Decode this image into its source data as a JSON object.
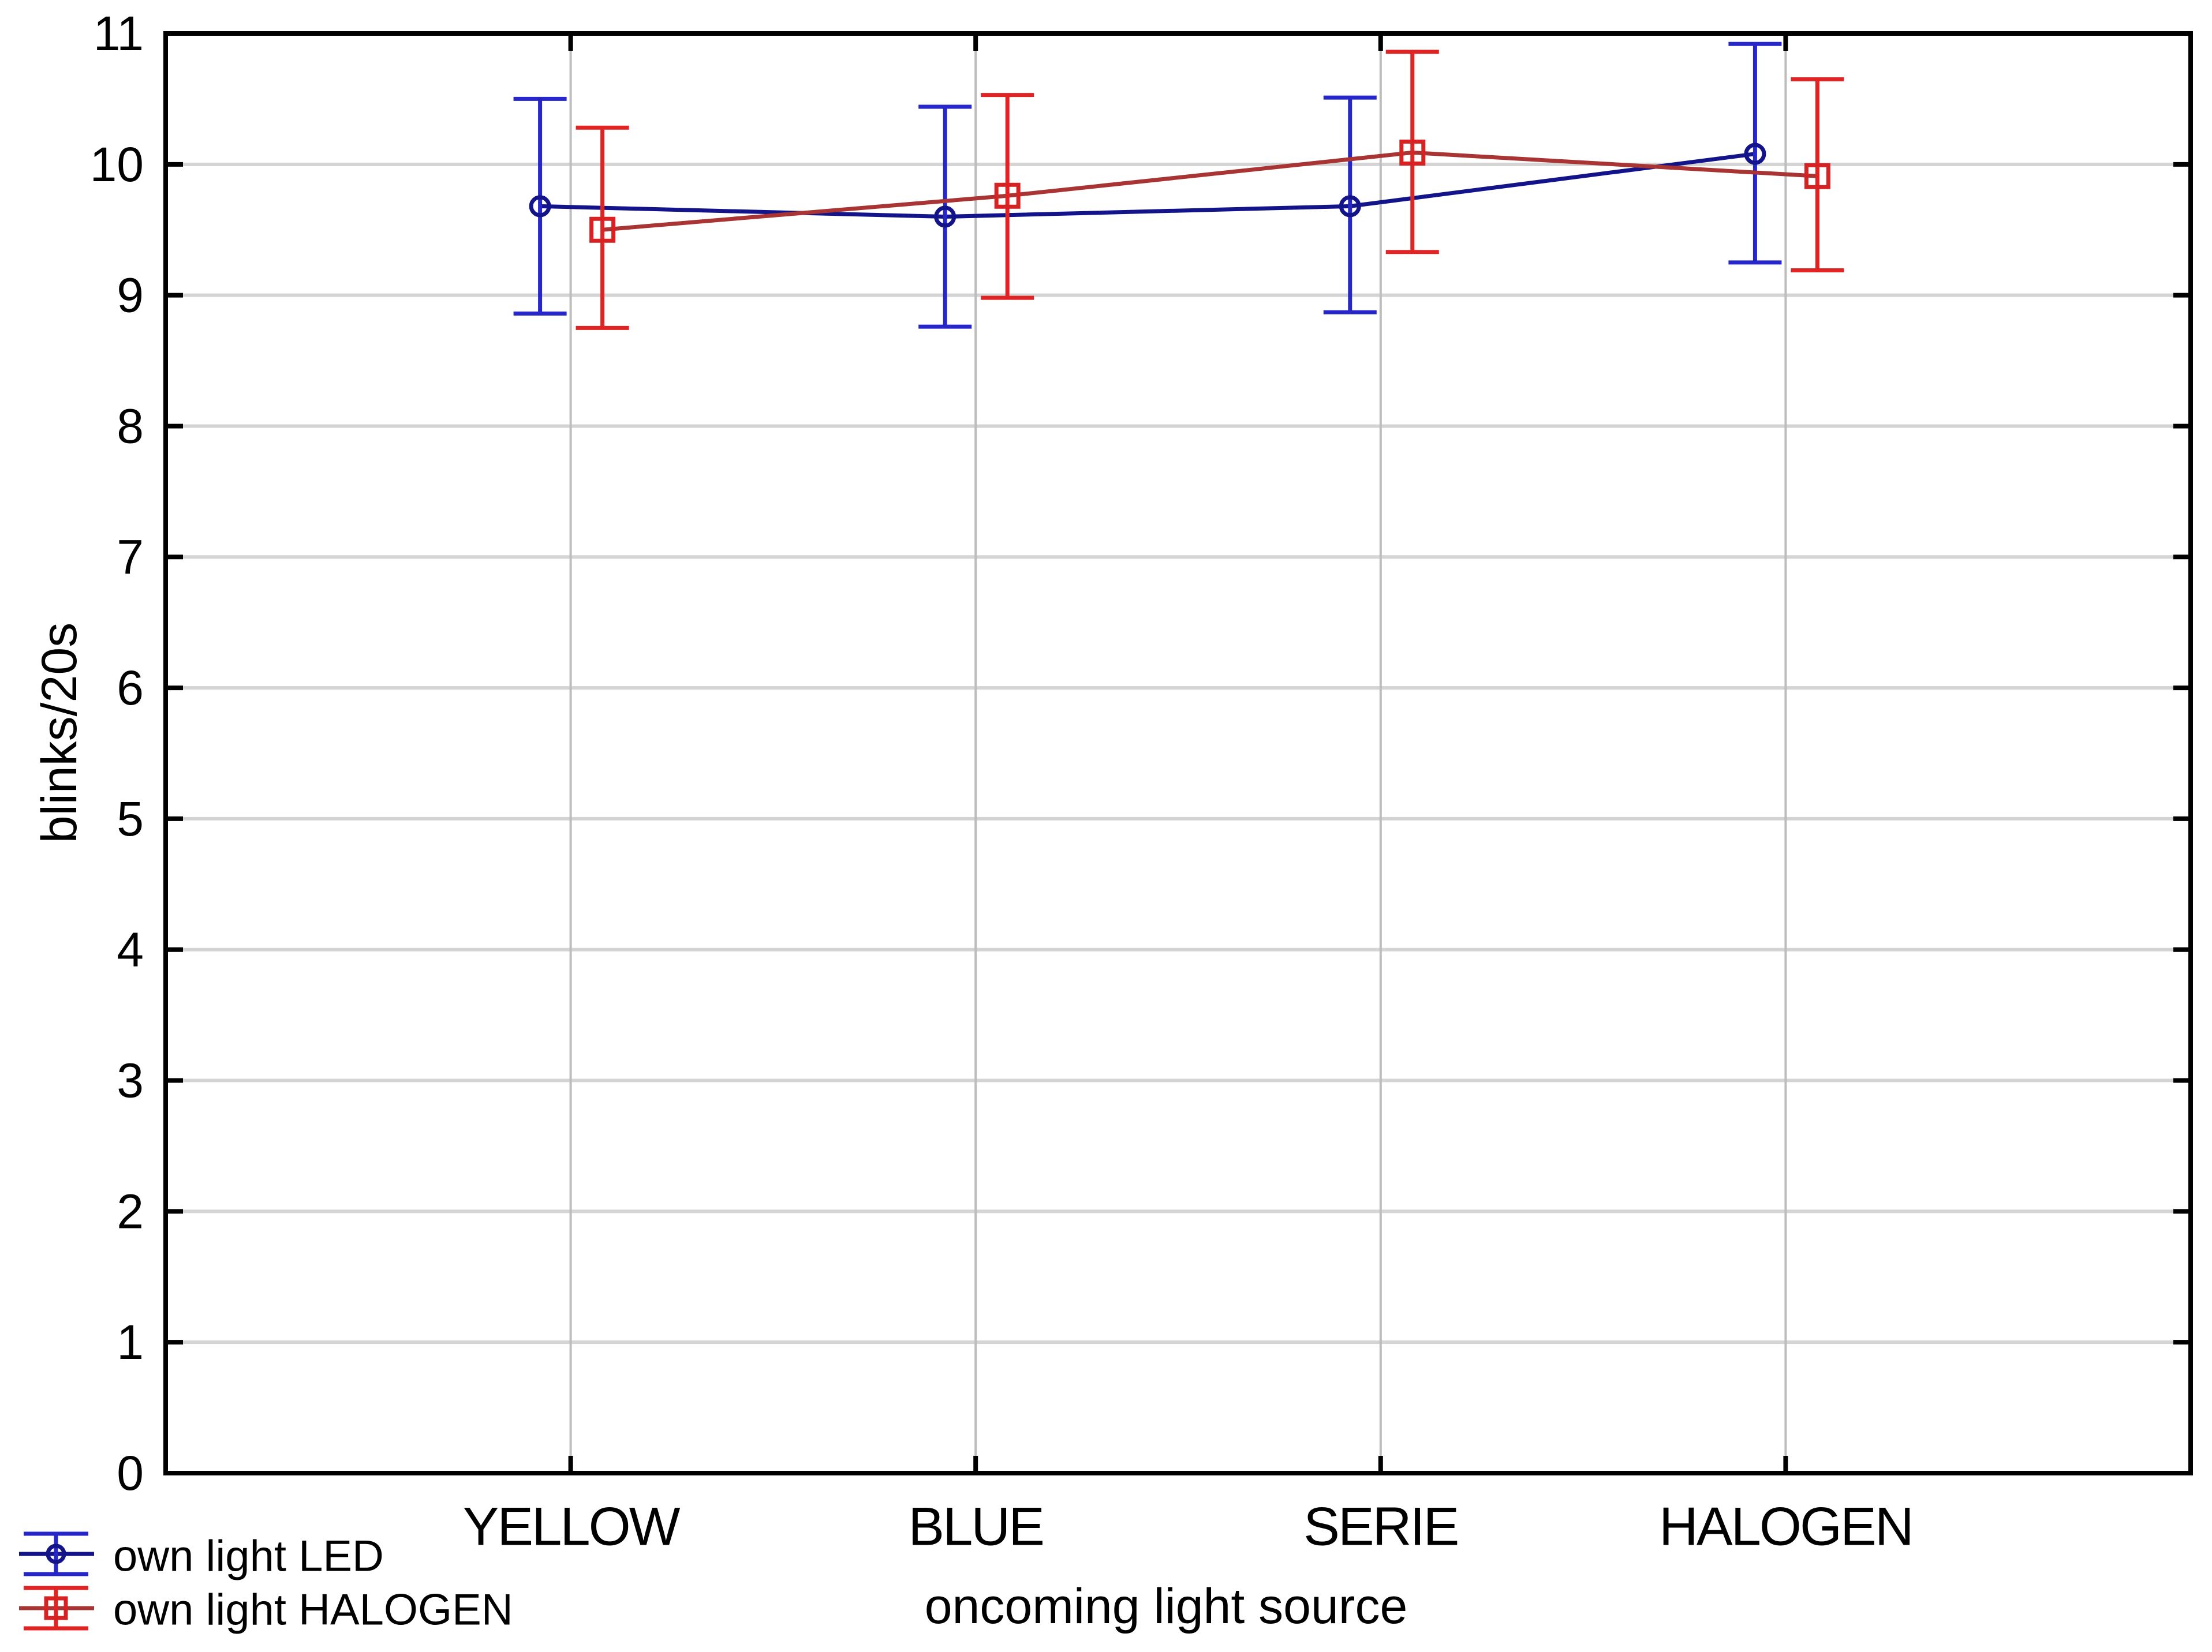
{
  "chart_data": {
    "type": "line",
    "subtype": "means-with-error-bars",
    "title": "",
    "xlabel": "oncoming light source",
    "ylabel": "blinks/20s",
    "categories": [
      "YELLOW",
      "BLUE",
      "SERIE",
      "HALOGEN"
    ],
    "ylim": [
      0,
      11
    ],
    "yticks": [
      0,
      1,
      2,
      3,
      4,
      5,
      6,
      7,
      8,
      9,
      10,
      11
    ],
    "grid": "both",
    "legend_position": "bottom-left",
    "series": [
      {
        "name": "own light LED",
        "marker": "circle",
        "whisker_color": "#2626C9",
        "marker_color": "#14148A",
        "line_color": "#14148A",
        "values": [
          9.68,
          9.6,
          9.68,
          10.08
        ],
        "ci_low": [
          8.86,
          8.76,
          8.87,
          9.25
        ],
        "ci_high": [
          10.5,
          10.44,
          10.51,
          10.92
        ]
      },
      {
        "name": "own light HALOGEN",
        "marker": "square",
        "whisker_color": "#E02424",
        "marker_color": "#D62222",
        "line_color": "#A83434",
        "values": [
          9.5,
          9.76,
          10.09,
          9.91
        ],
        "ci_low": [
          8.75,
          8.98,
          9.33,
          9.19
        ],
        "ci_high": [
          10.28,
          10.53,
          10.86,
          10.65
        ]
      }
    ],
    "colors": {
      "background": "#FFFFFF",
      "frame": "#000000",
      "grid_horizontal": "#D4D4D4",
      "grid_vertical": "#BDBDBD",
      "text": "#000000"
    }
  }
}
